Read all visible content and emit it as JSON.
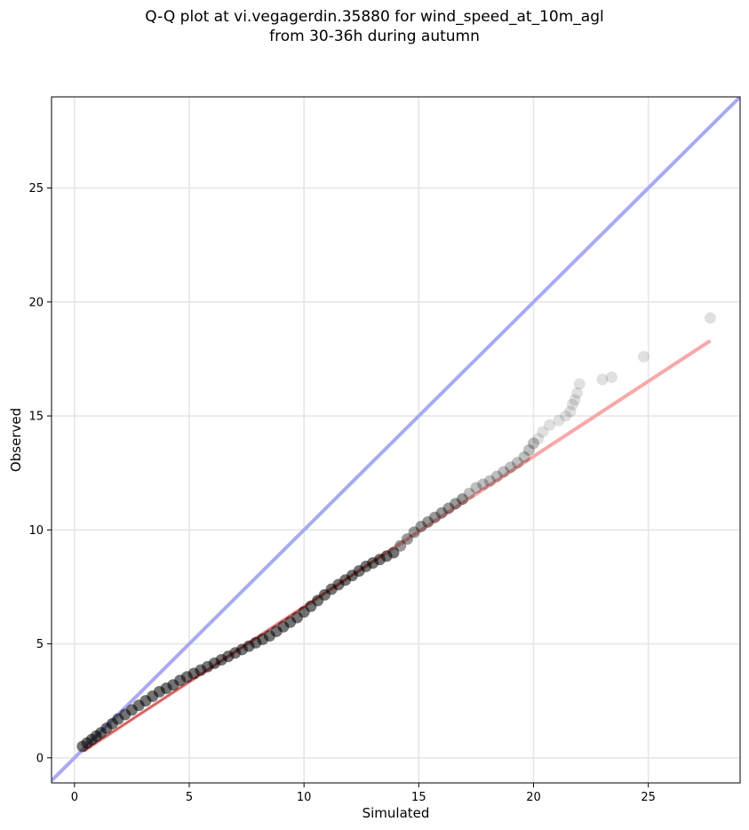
{
  "chart_data": {
    "type": "scatter",
    "title": "Q-Q plot at vi.vegagerdin.35880 for wind_speed_at_10m_agl",
    "subtitle": "from 30-36h during autumn",
    "xlabel": "Simulated",
    "ylabel": "Observed",
    "xlim": [
      -1.0,
      29.0
    ],
    "ylim": [
      -1.1,
      29.0
    ],
    "xticks": [
      0,
      5,
      10,
      15,
      20,
      25
    ],
    "yticks": [
      0,
      5,
      10,
      15,
      20,
      25
    ],
    "grid": true,
    "colors": {
      "points": "#000000",
      "identity_line": "#a9aaf2",
      "fit_line": "#f7a8a8",
      "fit_line_dense": "#8b0000",
      "grid": "#e6e6e6"
    },
    "identity_line": {
      "x": [
        -1.0,
        29.0
      ],
      "y": [
        -1.0,
        29.0
      ]
    },
    "fit_line": {
      "x": [
        0.4,
        27.7
      ],
      "y": [
        0.3,
        18.3
      ]
    },
    "series": [
      {
        "x": [
          0.35,
          0.55,
          0.75,
          0.95,
          1.15,
          1.4,
          1.65,
          1.9,
          2.2,
          2.5,
          2.8,
          3.1,
          3.4,
          3.7,
          4.0,
          4.3,
          4.6,
          4.9,
          5.2,
          5.5,
          5.8,
          6.1,
          6.4,
          6.7,
          7.0,
          7.3,
          7.6,
          7.9,
          8.2,
          8.5,
          8.8,
          9.1,
          9.4,
          9.7,
          10.0,
          10.3,
          10.6,
          10.9,
          11.2,
          11.5,
          11.8,
          12.1,
          12.4,
          12.7,
          13.0,
          13.3,
          13.6,
          13.9,
          14.2,
          14.5,
          14.8,
          15.1,
          15.4,
          15.7,
          16.0,
          16.3,
          16.6,
          16.9,
          17.2,
          17.5,
          17.8,
          18.1,
          18.4,
          18.7,
          19.0,
          19.3,
          19.6,
          19.8,
          20.0,
          20.2,
          20.4,
          20.7,
          21.1,
          21.4,
          21.6,
          21.7,
          21.8,
          21.9,
          22.0,
          23.0,
          23.4,
          24.8,
          27.7
        ],
        "y": [
          0.5,
          0.65,
          0.8,
          0.95,
          1.1,
          1.3,
          1.5,
          1.7,
          1.9,
          2.1,
          2.3,
          2.5,
          2.7,
          2.9,
          3.05,
          3.2,
          3.4,
          3.55,
          3.7,
          3.85,
          4.0,
          4.15,
          4.3,
          4.45,
          4.6,
          4.75,
          4.9,
          5.05,
          5.2,
          5.35,
          5.55,
          5.75,
          5.95,
          6.15,
          6.4,
          6.65,
          6.9,
          7.15,
          7.4,
          7.6,
          7.8,
          8.0,
          8.2,
          8.4,
          8.55,
          8.7,
          8.85,
          9.0,
          9.3,
          9.6,
          9.9,
          10.15,
          10.35,
          10.55,
          10.75,
          10.95,
          11.15,
          11.35,
          11.6,
          11.85,
          12.0,
          12.15,
          12.35,
          12.55,
          12.75,
          12.95,
          13.2,
          13.5,
          13.8,
          14.0,
          14.3,
          14.6,
          14.8,
          15.0,
          15.2,
          15.5,
          15.7,
          16.0,
          16.4,
          16.6,
          16.7,
          17.6,
          19.3
        ]
      }
    ]
  }
}
